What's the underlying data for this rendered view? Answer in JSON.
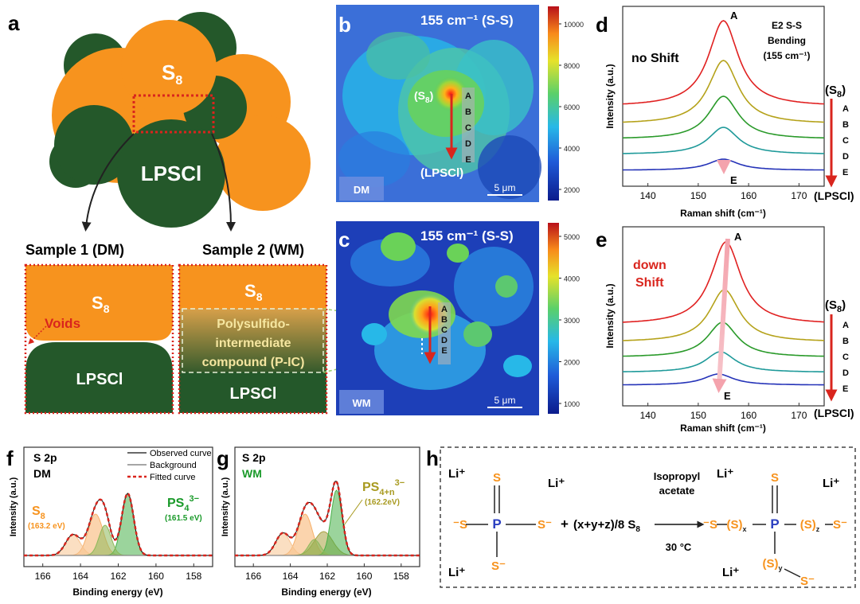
{
  "panels": {
    "a": {
      "letter": "a",
      "s8": "S",
      "s8_sub": "8",
      "lpscl": "LPSCl",
      "sample1": "Sample 1 (DM)",
      "sample2": "Sample 2 (WM)",
      "dm_box": {
        "s8": "S",
        "s8_sub": "8",
        "voids": "Voids",
        "lpscl": "LPSCl"
      },
      "wm_box": {
        "s8": "S",
        "s8_sub": "8",
        "pic_line1": "Polysulfido-",
        "pic_line2": "intermediate",
        "pic_line3": "compound (P-IC)",
        "lpscl": "LPSCl"
      },
      "colors": {
        "orange": "#f7931e",
        "green": "#24582a",
        "red_dotted": "#d9251d"
      }
    },
    "b": {
      "letter": "b",
      "title": "155 cm⁻¹ (S-S)",
      "s8_label": "(S",
      "s8_sub": "8",
      "s8_close": ")",
      "points": [
        "A",
        "B",
        "C",
        "D",
        "E"
      ],
      "lpscl_label": "(LPSCl)",
      "tag": "DM",
      "scale": "5 μm",
      "colorbar_ticks": [
        "10000",
        "8000",
        "6000",
        "4000",
        "2000"
      ]
    },
    "c": {
      "letter": "c",
      "title": "155 cm⁻¹ (S-S)",
      "points": [
        "A",
        "B",
        "C",
        "D",
        "E"
      ],
      "tag": "WM",
      "scale": "5 μm",
      "colorbar_ticks": [
        "5000",
        "4000",
        "3000",
        "2000",
        "1000"
      ]
    },
    "d": {
      "letter": "d",
      "note": "no Shift",
      "annotation": [
        "E2 S-S",
        "Bending",
        "(155 cm⁻¹)"
      ],
      "ylabel": "Intensity (a.u.)",
      "xlabel": "Raman shift (cm⁻¹)",
      "xticks": [
        "140",
        "150",
        "160",
        "170"
      ],
      "top_label": "A",
      "bottom_label": "E",
      "side_top": "(S",
      "side_top_sub": "8",
      "side_top_close": ")",
      "side_points": [
        "A",
        "B",
        "C",
        "D",
        "E"
      ],
      "side_bottom": "(LPSCl)"
    },
    "e": {
      "letter": "e",
      "note_line1": "down",
      "note_line2": "Shift",
      "ylabel": "Intensity (a.u.)",
      "xlabel": "Raman shift (cm⁻¹)",
      "xticks": [
        "140",
        "150",
        "160",
        "170"
      ],
      "top_label": "A",
      "bottom_label": "E",
      "side_top": "(S",
      "side_top_sub": "8",
      "side_top_close": ")",
      "side_points": [
        "A",
        "B",
        "C",
        "D",
        "E"
      ],
      "side_bottom": "(LPSCl)"
    },
    "f": {
      "letter": "f",
      "label1": "S 2p",
      "label2": "DM",
      "legend": [
        "Observed curve",
        "Background",
        "Fitted curve"
      ],
      "peak1": "S",
      "peak1_sub": "8",
      "peak1_value": "(163.2 eV)",
      "peak2": "PS",
      "peak2_sub": "4",
      "peak2_sup": "3−",
      "peak2_value": "(161.5 eV)",
      "ylabel": "Intensity (a.u.)",
      "xlabel": "Binding energy (eV)",
      "xticks": [
        "166",
        "164",
        "162",
        "160",
        "158"
      ]
    },
    "g": {
      "letter": "g",
      "label1": "S 2p",
      "label2": "WM",
      "peak": "PS",
      "peak_sub": "4+n",
      "peak_sup": "3−",
      "peak_value": "(162.2eV)",
      "ylabel": "Intensity (a.u.)",
      "xlabel": "Binding energy (eV)",
      "xticks": [
        "166",
        "164",
        "162",
        "160",
        "158"
      ]
    },
    "h": {
      "letter": "h",
      "li": "Li⁺",
      "s": "S",
      "s_minus": "S⁻",
      "minus_s": "⁻S",
      "p": "P",
      "plus": "+",
      "coef": "(x+y+z)/8 S",
      "coef_sub": "8",
      "reagent_line1": "Isopropyl",
      "reagent_line2": "acetate",
      "temperature": "30 °C",
      "sx": "x",
      "sy": "y",
      "sz": "z"
    }
  },
  "raman_d": {
    "type": "line",
    "xlim": [
      135,
      175
    ],
    "series": [
      {
        "name": "A",
        "peak": 155,
        "color": "#e02020"
      },
      {
        "name": "B",
        "peak": 155,
        "color": "#b5a21a"
      },
      {
        "name": "C",
        "peak": 155,
        "color": "#2a9a2a"
      },
      {
        "name": "D",
        "peak": 155,
        "color": "#1f9a9a"
      },
      {
        "name": "E",
        "peak": 155,
        "color": "#2533b8"
      }
    ]
  },
  "raman_e": {
    "type": "line",
    "xlim": [
      135,
      175
    ],
    "series": [
      {
        "name": "A",
        "peak": 155.5,
        "color": "#e02020"
      },
      {
        "name": "B",
        "peak": 155.2,
        "color": "#b5a21a"
      },
      {
        "name": "C",
        "peak": 154.8,
        "color": "#2a9a2a"
      },
      {
        "name": "D",
        "peak": 154.4,
        "color": "#1f9a9a"
      },
      {
        "name": "E",
        "peak": 154.0,
        "color": "#2533b8"
      }
    ]
  },
  "xps_f": {
    "type": "area",
    "xlim": [
      167,
      157
    ],
    "components": [
      {
        "name": "S8 2p3/2",
        "center": 163.2,
        "color": "#f7b06a"
      },
      {
        "name": "S8 2p1/2",
        "center": 164.4,
        "color": "#f7c48f"
      },
      {
        "name": "PS4 2p3/2",
        "center": 161.5,
        "color": "#48b04a"
      },
      {
        "name": "PS4 2p1/2",
        "center": 162.7,
        "color": "#8db85a"
      }
    ]
  },
  "xps_g": {
    "type": "area",
    "xlim": [
      167,
      157
    ],
    "components": [
      {
        "name": "S8 2p3/2",
        "center": 163.2,
        "color": "#f7b06a"
      },
      {
        "name": "S8 2p1/2",
        "center": 164.4,
        "color": "#f7c48f"
      },
      {
        "name": "PS4+n 2p3/2",
        "center": 162.2,
        "color": "#a8a040"
      },
      {
        "name": "PS4 2p3/2",
        "center": 161.5,
        "color": "#48b04a"
      },
      {
        "name": "PS4 2p1/2",
        "center": 162.7,
        "color": "#8db85a"
      }
    ]
  }
}
